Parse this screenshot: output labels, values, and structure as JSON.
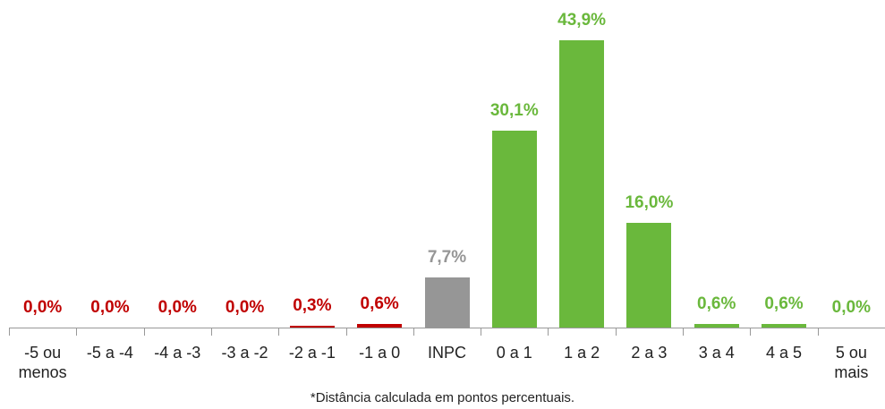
{
  "chart_data": {
    "type": "bar",
    "categories": [
      "-5 ou menos",
      "-5 a -4",
      "-4 a -3",
      "-3 a -2",
      "-2 a -1",
      "-1 a 0",
      "INPC",
      "0 a 1",
      "1 a 2",
      "2 a 3",
      "3 a 4",
      "4 a 5",
      "5 ou mais"
    ],
    "values": [
      0.0,
      0.0,
      0.0,
      0.0,
      0.3,
      0.6,
      7.7,
      30.1,
      43.9,
      16.0,
      0.6,
      0.6,
      0.0
    ],
    "value_labels": [
      "0,0%",
      "0,0%",
      "0,0%",
      "0,0%",
      "0,3%",
      "0,6%",
      "7,7%",
      "30,1%",
      "43,9%",
      "16,0%",
      "0,6%",
      "0,6%",
      "0,0%"
    ],
    "colors": [
      "#c00000",
      "#c00000",
      "#c00000",
      "#c00000",
      "#c00000",
      "#c00000",
      "#969696",
      "#6ab83c",
      "#6ab83c",
      "#6ab83c",
      "#6ab83c",
      "#6ab83c",
      "#6ab83c"
    ],
    "note": "*Distância calculada em pontos percentuais."
  }
}
